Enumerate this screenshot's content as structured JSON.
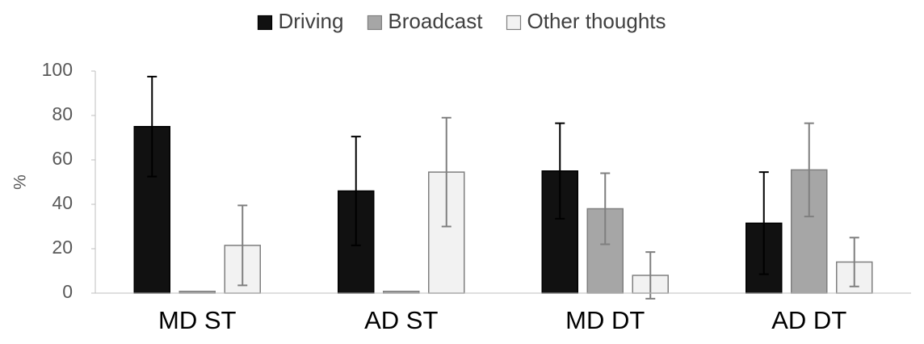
{
  "chart_data": {
    "type": "bar",
    "categories": [
      "MD ST",
      "AD ST",
      "MD DT",
      "AD DT"
    ],
    "ylabel": "%",
    "xlabel": "",
    "ylim": [
      0,
      100
    ],
    "yticks": [
      0,
      20,
      40,
      60,
      80,
      100
    ],
    "grid": false,
    "legend_position": "top-center",
    "series": [
      {
        "name": "Driving",
        "color": "#111111",
        "error_color": "#000000",
        "values": [
          75,
          46,
          55,
          31.5
        ],
        "errors": [
          22.5,
          24.5,
          21.5,
          23
        ]
      },
      {
        "name": "Broadcast",
        "color": "#a6a6a6",
        "error_color": "#7f7f7f",
        "values": [
          0.8,
          0.8,
          38,
          55.5
        ],
        "errors": [
          0,
          0,
          16,
          21
        ]
      },
      {
        "name": "Other thoughts",
        "color": "#f2f2f2",
        "error_color": "#7f7f7f",
        "values": [
          21.5,
          54.5,
          8,
          14
        ],
        "errors": [
          18,
          24.5,
          10.5,
          11
        ]
      }
    ]
  }
}
